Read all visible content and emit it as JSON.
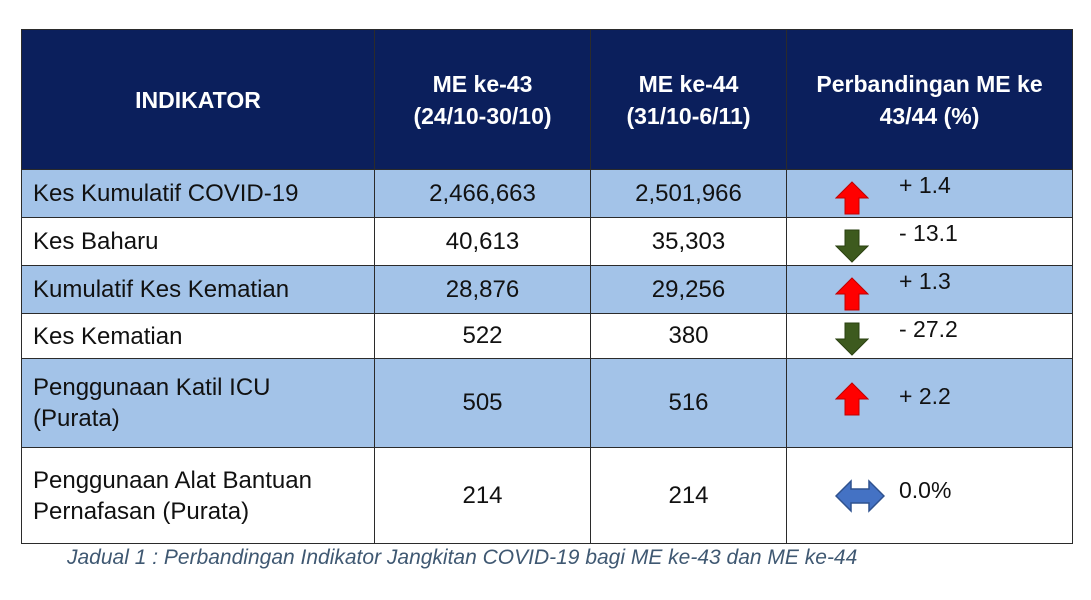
{
  "table": {
    "headers": [
      {
        "lines": [
          "INDIKATOR"
        ]
      },
      {
        "lines": [
          "ME ke-43",
          "(24/10-30/10)"
        ]
      },
      {
        "lines": [
          "ME ke-44",
          "(31/10-6/11)"
        ]
      },
      {
        "lines": [
          "Perbandingan ME ke",
          "43/44 (%)"
        ]
      }
    ],
    "rows": [
      {
        "indicator": [
          "Kes Kumulatif COVID-19"
        ],
        "me43": "2,466,663",
        "me44": "2,501,966",
        "change": "+ 1.4",
        "trend": "up-arrow-icon"
      },
      {
        "indicator": [
          "Kes Baharu"
        ],
        "me43": "40,613",
        "me44": "35,303",
        "change": "- 13.1",
        "trend": "down-arrow-icon"
      },
      {
        "indicator": [
          "Kumulatif Kes Kematian"
        ],
        "me43": "28,876",
        "me44": "29,256",
        "change": "+ 1.3",
        "trend": "up-arrow-icon"
      },
      {
        "indicator": [
          "Kes Kematian"
        ],
        "me43": "522",
        "me44": "380",
        "change": "- 27.2",
        "trend": "down-arrow-icon"
      },
      {
        "indicator": [
          "Penggunaan Katil ICU",
          "(Purata)"
        ],
        "me43": "505",
        "me44": "516",
        "change": "+ 2.2",
        "trend": "up-arrow-icon"
      },
      {
        "indicator": [
          "Penggunaan Alat Bantuan",
          "Pernafasan (Purata)"
        ],
        "me43": "214",
        "me44": "214",
        "change": "0.0%",
        "trend": "left-right-arrow-icon"
      }
    ]
  },
  "colors": {
    "header_bg": "#0b1f5c",
    "row_band": "#a3c3e8",
    "up_arrow": "#ff0000",
    "down_arrow": "#3d5a1e",
    "flat_arrow": "#4472c4"
  },
  "caption": "Jadual  1 : Perbandingan Indikator Jangkitan COVID-19 bagi ME ke-43 dan ME ke-44"
}
